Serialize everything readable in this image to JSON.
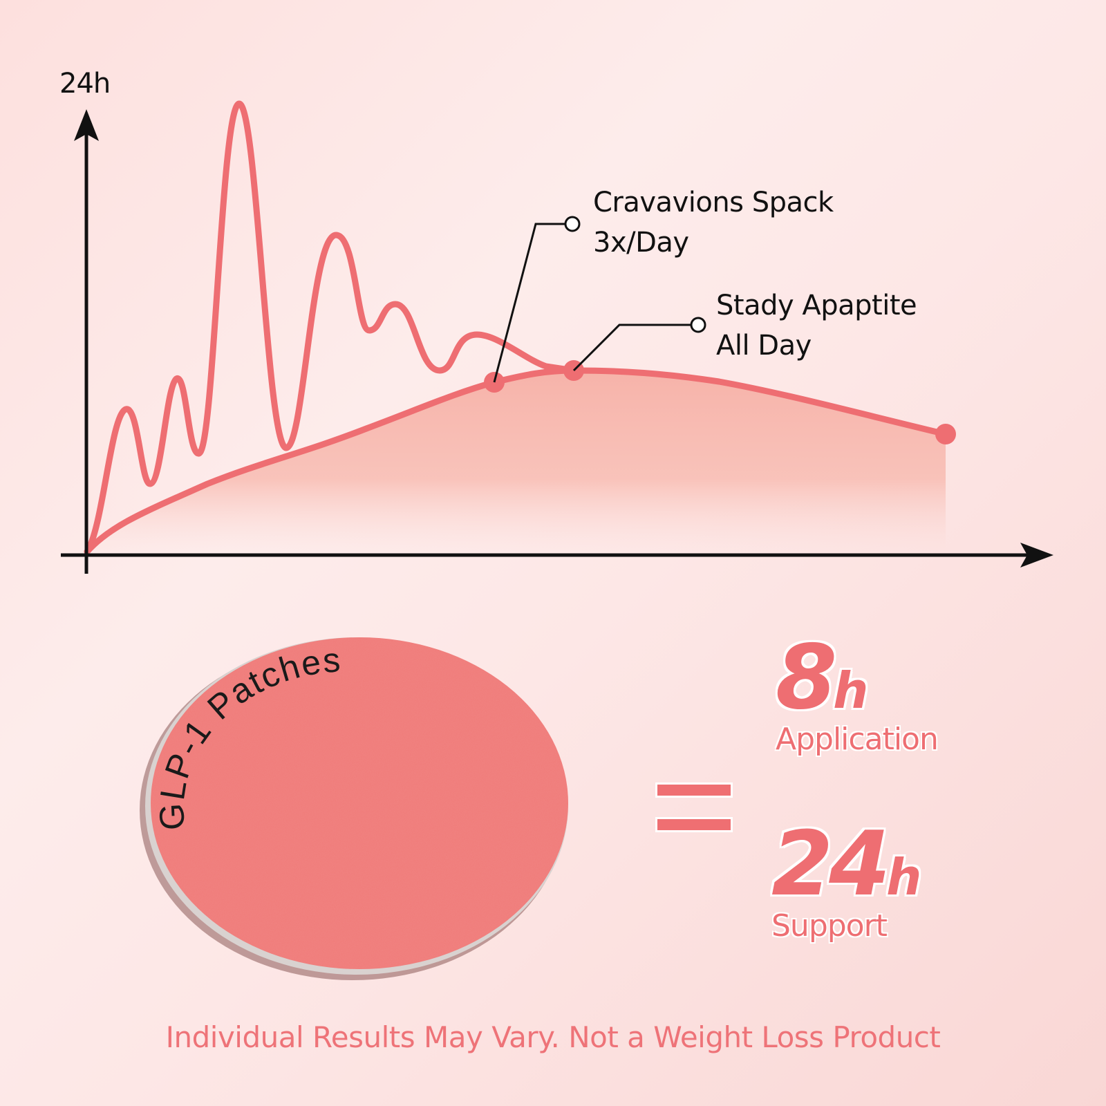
{
  "chart": {
    "y_axis_label": "24h",
    "callouts": [
      {
        "line1": "Cravavions Spack",
        "line2": "3x/Day"
      },
      {
        "line1": "Stady Apaptite",
        "line2": "All Day"
      }
    ]
  },
  "patch": {
    "label": "GLP-1 Patches"
  },
  "stats": [
    {
      "number": "8",
      "unit": "h",
      "caption": "Application"
    },
    {
      "number": "24",
      "unit": "h",
      "caption": "Support"
    }
  ],
  "disclaimer": "Individual Results May Vary. Not a Weight Loss Product",
  "colors": {
    "accent": "#ee6e72",
    "fill": "#f8b8ae",
    "background": "#fde4e2"
  }
}
